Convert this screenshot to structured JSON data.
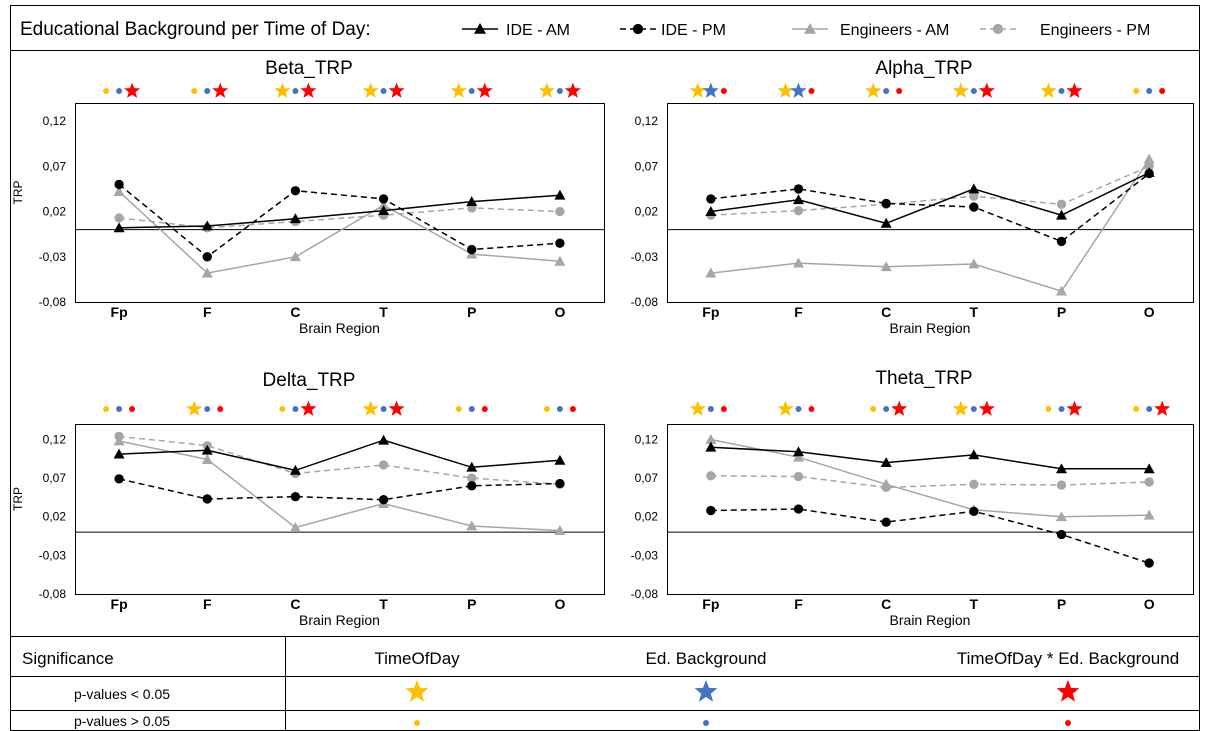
{
  "header": {
    "title": "Educational Background per Time of Day:"
  },
  "legend": [
    {
      "name": "IDE - AM",
      "color": "#000000",
      "marker": "triangle",
      "dash": false
    },
    {
      "name": "IDE - PM",
      "color": "#000000",
      "marker": "circle",
      "dash": true
    },
    {
      "name": "Engineers - AM",
      "color": "#a6a6a6",
      "marker": "triangle",
      "dash": false
    },
    {
      "name": "Engineers - PM",
      "color": "#a6a6a6",
      "marker": "circle",
      "dash": true
    }
  ],
  "colors": {
    "time_of_day": "#ffc000",
    "ed_background": "#4472c4",
    "interaction": "#ff0000",
    "ide": "#000000",
    "engineers": "#a6a6a6"
  },
  "chart_data": [
    {
      "type": "line",
      "title": "Beta_TRP",
      "xlabel": "Brain Region",
      "ylabel": "TRP",
      "categories": [
        "Fp",
        "F",
        "C",
        "T",
        "P",
        "O"
      ],
      "yticks": [
        "0,12",
        "0,07",
        "0,02",
        "-0,03",
        "-0,08"
      ],
      "ylim": [
        -0.08,
        0.14
      ],
      "series": [
        {
          "name": "IDE - AM",
          "values": [
            0.002,
            0.004,
            0.012,
            0.021,
            0.031,
            0.038
          ]
        },
        {
          "name": "IDE - PM",
          "values": [
            0.05,
            -0.03,
            0.043,
            0.034,
            -0.022,
            -0.015
          ]
        },
        {
          "name": "Engineers - AM",
          "values": [
            0.042,
            -0.048,
            -0.03,
            0.027,
            -0.027,
            -0.035
          ]
        },
        {
          "name": "Engineers - PM",
          "values": [
            0.013,
            0.002,
            0.009,
            0.016,
            0.024,
            0.02
          ]
        }
      ],
      "significance": [
        [
          "dot-y",
          "dot-b",
          "star-r"
        ],
        [
          "dot-y",
          "dot-b",
          "star-r"
        ],
        [
          "star-y",
          "dot-b",
          "star-r"
        ],
        [
          "star-y",
          "dot-b",
          "star-r"
        ],
        [
          "star-y",
          "dot-b",
          "star-r"
        ],
        [
          "star-y",
          "dot-b",
          "star-r"
        ]
      ]
    },
    {
      "type": "line",
      "title": "Alpha_TRP",
      "xlabel": "Brain Region",
      "ylabel": "",
      "categories": [
        "Fp",
        "F",
        "C",
        "T",
        "P",
        "O"
      ],
      "yticks": [
        "0,12",
        "0,07",
        "0,02",
        "-0,03",
        "-0,08"
      ],
      "ylim": [
        -0.08,
        0.14
      ],
      "series": [
        {
          "name": "IDE - AM",
          "values": [
            0.02,
            0.033,
            0.007,
            0.045,
            0.016,
            0.063
          ]
        },
        {
          "name": "IDE - PM",
          "values": [
            0.034,
            0.045,
            0.029,
            0.025,
            -0.013,
            0.062
          ]
        },
        {
          "name": "Engineers - AM",
          "values": [
            -0.048,
            -0.037,
            -0.041,
            -0.038,
            -0.068,
            0.078
          ]
        },
        {
          "name": "Engineers - PM",
          "values": [
            0.016,
            0.021,
            0.028,
            0.037,
            0.028,
            0.07
          ]
        }
      ],
      "significance": [
        [
          "star-y",
          "star-b",
          "dot-r"
        ],
        [
          "star-y",
          "star-b",
          "dot-r"
        ],
        [
          "star-y",
          "dot-b",
          "dot-r"
        ],
        [
          "star-y",
          "dot-b",
          "star-r"
        ],
        [
          "star-y",
          "dot-b",
          "star-r"
        ],
        [
          "dot-y",
          "dot-b",
          "dot-r"
        ]
      ]
    },
    {
      "type": "line",
      "title": "Delta_TRP",
      "xlabel": "Brain Region",
      "ylabel": "TRP",
      "categories": [
        "Fp",
        "F",
        "C",
        "T",
        "P",
        "O"
      ],
      "yticks": [
        "0,12",
        "0,07",
        "0,02",
        "-0,03",
        "-0,08"
      ],
      "ylim": [
        -0.08,
        0.14
      ],
      "series": [
        {
          "name": "IDE - AM",
          "values": [
            0.101,
            0.106,
            0.08,
            0.119,
            0.084,
            0.093
          ]
        },
        {
          "name": "IDE - PM",
          "values": [
            0.069,
            0.043,
            0.046,
            0.042,
            0.06,
            0.063
          ]
        },
        {
          "name": "Engineers - AM",
          "values": [
            0.118,
            0.094,
            0.006,
            0.037,
            0.008,
            0.002
          ]
        },
        {
          "name": "Engineers - PM",
          "values": [
            0.124,
            0.112,
            0.076,
            0.087,
            0.07,
            0.062
          ]
        }
      ],
      "significance": [
        [
          "dot-y",
          "dot-b",
          "dot-r"
        ],
        [
          "star-y",
          "dot-b",
          "dot-r"
        ],
        [
          "dot-y",
          "dot-b",
          "star-r"
        ],
        [
          "star-y",
          "dot-b",
          "star-r"
        ],
        [
          "dot-y",
          "dot-b",
          "dot-r"
        ],
        [
          "dot-y",
          "dot-b",
          "dot-r"
        ]
      ]
    },
    {
      "type": "line",
      "title": "Theta_TRP",
      "xlabel": "Brain Region",
      "ylabel": "",
      "categories": [
        "Fp",
        "F",
        "C",
        "T",
        "P",
        "O"
      ],
      "yticks": [
        "0,12",
        "0,07",
        "0,02",
        "-0,03",
        "-0,08"
      ],
      "ylim": [
        -0.08,
        0.14
      ],
      "series": [
        {
          "name": "IDE - AM",
          "values": [
            0.11,
            0.104,
            0.09,
            0.1,
            0.082,
            0.082
          ]
        },
        {
          "name": "IDE - PM",
          "values": [
            0.028,
            0.03,
            0.013,
            0.027,
            -0.003,
            -0.04
          ]
        },
        {
          "name": "Engineers - AM",
          "values": [
            0.12,
            0.097,
            0.062,
            0.029,
            0.02,
            0.022
          ]
        },
        {
          "name": "Engineers - PM",
          "values": [
            0.073,
            0.072,
            0.058,
            0.062,
            0.061,
            0.065
          ]
        }
      ],
      "significance": [
        [
          "star-y",
          "dot-b",
          "dot-r"
        ],
        [
          "star-y",
          "dot-b",
          "dot-r"
        ],
        [
          "dot-y",
          "dot-b",
          "star-r"
        ],
        [
          "star-y",
          "dot-b",
          "star-r"
        ],
        [
          "dot-y",
          "dot-b",
          "star-r"
        ],
        [
          "dot-y",
          "dot-b",
          "star-r"
        ]
      ]
    }
  ],
  "significance_table": {
    "header": [
      "Significance",
      "TimeOfDay",
      "Ed. Background",
      "TimeOfDay * Ed. Background"
    ],
    "rows": [
      {
        "label": "p-values < 0.05",
        "markers": [
          "star-y",
          "star-b",
          "star-r"
        ]
      },
      {
        "label": "p-values > 0.05",
        "markers": [
          "dot-y",
          "dot-b",
          "dot-r"
        ]
      }
    ]
  }
}
